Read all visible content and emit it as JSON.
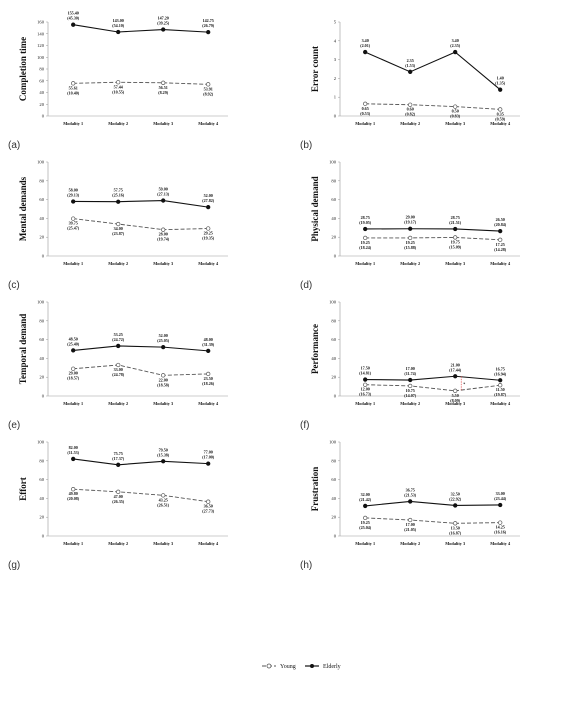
{
  "legend": {
    "young": "Young",
    "elderly": "Elderly"
  },
  "chart_data": [
    {
      "type": "line",
      "panel_label": "(a)",
      "ylabel": "Completion time",
      "ylim": [
        0,
        160
      ],
      "yticks": [
        0,
        20,
        40,
        60,
        80,
        100,
        120,
        140,
        160
      ],
      "categories": [
        "Modality 1",
        "Modality 2",
        "Modality 3",
        "Modality 4"
      ],
      "series": [
        {
          "name": "Elderly",
          "values": [
            155.4,
            143.0,
            147.2,
            142.75
          ],
          "labels": [
            "155.40",
            "143.00",
            "147.20",
            "142.75"
          ],
          "sd": [
            "(45.30)",
            "(54.10)",
            "(39.25)",
            "(26.79)"
          ]
        },
        {
          "name": "Young",
          "values": [
            55.61,
            57.44,
            56.51,
            53.91
          ],
          "labels": [
            "55.61",
            "57.44",
            "56.51",
            "53.91"
          ],
          "sd": [
            "(10.40)",
            "(10.55)",
            "(8.29)",
            "(8.92)"
          ]
        }
      ]
    },
    {
      "type": "line",
      "panel_label": "(b)",
      "ylabel": "Error count",
      "ylim": [
        0,
        5
      ],
      "yticks": [
        0,
        1,
        2,
        3,
        4,
        5
      ],
      "categories": [
        "Modality 1",
        "Modality 2",
        "Modality 3",
        "Modality 4"
      ],
      "series": [
        {
          "name": "Elderly",
          "values": [
            3.4,
            2.35,
            3.4,
            1.4
          ],
          "labels": [
            "3.40",
            "2.35",
            "3.40",
            "1.40"
          ],
          "sd": [
            "(2.01)",
            "(1.53)",
            "(2.35)",
            "(1.35)"
          ]
        },
        {
          "name": "Young",
          "values": [
            0.65,
            0.6,
            0.5,
            0.35
          ],
          "labels": [
            "0.65",
            "0.60",
            "0.50",
            "0.35"
          ],
          "sd": [
            "(0.53)",
            "(0.82)",
            "(0.83)",
            "(0.59)"
          ]
        }
      ]
    },
    {
      "type": "line",
      "panel_label": "(c)",
      "ylabel": "Mental demands",
      "ylim": [
        0,
        100
      ],
      "yticks": [
        0,
        20,
        40,
        60,
        80,
        100
      ],
      "categories": [
        "Modality 1",
        "Modality 2",
        "Modality 3",
        "Modality 4"
      ],
      "series": [
        {
          "name": "Elderly",
          "values": [
            58.0,
            57.75,
            59.0,
            52.0
          ],
          "labels": [
            "58.00",
            "57.75",
            "59.00",
            "52.00"
          ],
          "sd": [
            "(29.13)",
            "(25.16)",
            "(27.13)",
            "(27.82)"
          ]
        },
        {
          "name": "Young",
          "values": [
            39.75,
            34.0,
            28.0,
            29.25
          ],
          "labels": [
            "39.75",
            "34.00",
            "28.00",
            "29.25"
          ],
          "sd": [
            "(25.47)",
            "(23.87)",
            "(19.74)",
            "(19.35)"
          ]
        }
      ]
    },
    {
      "type": "line",
      "panel_label": "(d)",
      "ylabel": "Physical demand",
      "ylim": [
        0,
        100
      ],
      "yticks": [
        0,
        20,
        40,
        60,
        80,
        100
      ],
      "categories": [
        "Modality 1",
        "Modality 2",
        "Modality 3",
        "Modality 4"
      ],
      "series": [
        {
          "name": "Elderly",
          "values": [
            28.75,
            29.0,
            28.75,
            26.5
          ],
          "labels": [
            "28.75",
            "29.00",
            "28.75",
            "26.50"
          ],
          "sd": [
            "(19.05)",
            "(19.17)",
            "(21.51)",
            "(20.84)"
          ]
        },
        {
          "name": "Young",
          "values": [
            19.25,
            19.25,
            19.75,
            17.25
          ],
          "labels": [
            "19.25",
            "19.25",
            "19.75",
            "17.25"
          ],
          "sd": [
            "(18.24)",
            "(15.88)",
            "(15.09)",
            "(14.28)"
          ]
        }
      ]
    },
    {
      "type": "line",
      "panel_label": "(e)",
      "ylabel": "Temporal demand",
      "ylim": [
        0,
        100
      ],
      "yticks": [
        0,
        20,
        40,
        60,
        80,
        100
      ],
      "categories": [
        "Modality 1",
        "Modality 2",
        "Modality 3",
        "Modality 4"
      ],
      "series": [
        {
          "name": "Elderly",
          "values": [
            48.5,
            53.25,
            52.0,
            48.0
          ],
          "labels": [
            "48.50",
            "53.25",
            "52.00",
            "48.00"
          ],
          "sd": [
            "(25.40)",
            "(24.72)",
            "(25.05)",
            "(31.39)"
          ]
        },
        {
          "name": "Young",
          "values": [
            29.0,
            33.0,
            22.0,
            23.5
          ],
          "labels": [
            "29.00",
            "33.00",
            "22.00",
            "23.50"
          ],
          "sd": [
            "(18.57)",
            "(24.78)",
            "(18.58)",
            "(18.26)"
          ]
        }
      ]
    },
    {
      "type": "line",
      "panel_label": "(f)",
      "ylabel": "Performance",
      "ylim": [
        0,
        100
      ],
      "yticks": [
        0,
        20,
        40,
        60,
        80,
        100
      ],
      "categories": [
        "Modality 1",
        "Modality 2",
        "Modality 3",
        "Modality 4"
      ],
      "annotation": "*",
      "series": [
        {
          "name": "Elderly",
          "values": [
            17.5,
            17.0,
            21.0,
            16.75
          ],
          "labels": [
            "17.50",
            "17.00",
            "21.00",
            "16.75"
          ],
          "sd": [
            "(14.81)",
            "(11.74)",
            "(17.44)",
            "(16.94)"
          ]
        },
        {
          "name": "Young",
          "values": [
            12.0,
            10.75,
            5.5,
            11.5
          ],
          "labels": [
            "12.00",
            "10.75",
            "5.50",
            "11.50"
          ],
          "sd": [
            "(16.73)",
            "(14.07)",
            "(8.09)",
            "(19.87)"
          ]
        }
      ]
    },
    {
      "type": "line",
      "panel_label": "(g)",
      "ylabel": "Effort",
      "ylim": [
        0,
        100
      ],
      "yticks": [
        0,
        20,
        40,
        60,
        80,
        100
      ],
      "categories": [
        "Modality 1",
        "Modality 2",
        "Modality 3",
        "Modality 4"
      ],
      "series": [
        {
          "name": "Elderly",
          "values": [
            82.0,
            75.75,
            79.5,
            77.0
          ],
          "labels": [
            "82.00",
            "75.75",
            "79.50",
            "77.00"
          ],
          "sd": [
            "(11.53)",
            "(17.37)",
            "(15.38)",
            "(17.00)"
          ]
        },
        {
          "name": "Young",
          "values": [
            49.8,
            47.0,
            43.25,
            36.5
          ],
          "labels": [
            "49.80",
            "47.00",
            "43.25",
            "36.50"
          ],
          "sd": [
            "(20.08)",
            "(26.35)",
            "(26.51)",
            "(27.73)"
          ]
        }
      ]
    },
    {
      "type": "line",
      "panel_label": "(h)",
      "ylabel": "Frustration",
      "ylim": [
        0,
        100
      ],
      "yticks": [
        0,
        20,
        40,
        60,
        80,
        100
      ],
      "categories": [
        "Modality 1",
        "Modality 2",
        "Modality 3",
        "Modality 4"
      ],
      "series": [
        {
          "name": "Elderly",
          "values": [
            32.0,
            36.75,
            32.5,
            33.0
          ],
          "labels": [
            "32.00",
            "36.75",
            "32.50",
            "33.00"
          ],
          "sd": [
            "(21.42)",
            "(21.53)",
            "(22.92)",
            "(23.44)"
          ]
        },
        {
          "name": "Young",
          "values": [
            19.25,
            17.0,
            13.5,
            14.25
          ],
          "labels": [
            "19.25",
            "17.00",
            "13.50",
            "14.25"
          ],
          "sd": [
            "(25.04)",
            "(21.05)",
            "(16.87)",
            "(16.16)"
          ]
        }
      ]
    }
  ]
}
